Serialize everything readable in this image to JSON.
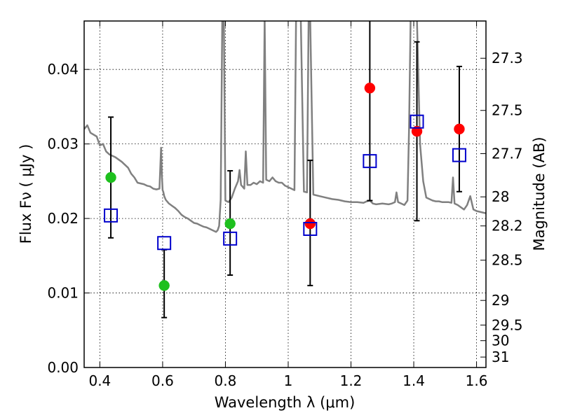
{
  "chart_data": {
    "type": "scatter",
    "xlim": [
      0.35,
      1.63
    ],
    "ylim": [
      0.0,
      0.0465
    ],
    "grid": true,
    "xlabel": "Wavelength  λ (μm)",
    "ylabel": "Flux  Fν  ( μJy )",
    "y2label": "Magnitude (AB)",
    "x_ticks": [
      {
        "value": 0.4,
        "label": "0.4"
      },
      {
        "value": 0.6,
        "label": "0.6"
      },
      {
        "value": 0.8,
        "label": "0.8"
      },
      {
        "value": 1.0,
        "label": "1"
      },
      {
        "value": 1.2,
        "label": "1.2"
      },
      {
        "value": 1.4,
        "label": "1.4"
      },
      {
        "value": 1.6,
        "label": "1.6"
      }
    ],
    "y_ticks": [
      {
        "value": 0.0,
        "label": "0.00"
      },
      {
        "value": 0.01,
        "label": "0.01"
      },
      {
        "value": 0.02,
        "label": "0.02"
      },
      {
        "value": 0.03,
        "label": "0.03"
      },
      {
        "value": 0.04,
        "label": "0.04"
      }
    ],
    "y2_ticks": [
      {
        "flux": 0.0415,
        "label": "27.3"
      },
      {
        "flux": 0.0345,
        "label": "27.5"
      },
      {
        "flux": 0.0287,
        "label": "27.7"
      },
      {
        "flux": 0.0229,
        "label": "28"
      },
      {
        "flux": 0.019,
        "label": "28.2"
      },
      {
        "flux": 0.0144,
        "label": "28.5"
      },
      {
        "flux": 0.009,
        "label": "29"
      },
      {
        "flux": 0.0057,
        "label": "29.5"
      },
      {
        "flux": 0.0036,
        "label": "30"
      },
      {
        "flux": 0.0014,
        "label": "31"
      }
    ],
    "series": [
      {
        "kind": "line",
        "color": "#808080",
        "x": [
          0.35,
          0.36,
          0.37,
          0.39,
          0.4,
          0.41,
          0.42,
          0.43,
          0.45,
          0.47,
          0.49,
          0.5,
          0.51,
          0.52,
          0.53,
          0.54,
          0.55,
          0.56,
          0.57,
          0.58,
          0.59,
          0.595,
          0.598,
          0.6,
          0.602,
          0.605,
          0.61,
          0.62,
          0.63,
          0.64,
          0.65,
          0.66,
          0.67,
          0.68,
          0.69,
          0.7,
          0.71,
          0.72,
          0.73,
          0.74,
          0.75,
          0.76,
          0.77,
          0.775,
          0.78,
          0.785,
          0.79,
          0.795,
          0.8,
          0.81,
          0.82,
          0.83,
          0.84,
          0.845,
          0.85,
          0.86,
          0.865,
          0.87,
          0.88,
          0.89,
          0.9,
          0.91,
          0.92,
          0.925,
          0.93,
          0.94,
          0.95,
          0.96,
          0.97,
          0.98,
          0.99,
          1.0,
          1.01,
          1.02,
          1.025,
          1.03,
          1.04,
          1.05,
          1.06,
          1.065,
          1.07,
          1.08,
          1.1,
          1.12,
          1.14,
          1.16,
          1.18,
          1.2,
          1.22,
          1.24,
          1.25,
          1.26,
          1.27,
          1.28,
          1.3,
          1.32,
          1.33,
          1.34,
          1.345,
          1.35,
          1.36,
          1.37,
          1.38,
          1.385,
          1.39,
          1.395,
          1.4,
          1.41,
          1.42,
          1.43,
          1.44,
          1.45,
          1.46,
          1.47,
          1.48,
          1.49,
          1.5,
          1.51,
          1.52,
          1.525,
          1.53,
          1.54,
          1.55,
          1.56,
          1.57,
          1.58,
          1.59,
          1.6,
          1.62,
          1.63
        ],
        "y": [
          0.032,
          0.0325,
          0.0315,
          0.031,
          0.0298,
          0.03,
          0.029,
          0.0286,
          0.0282,
          0.0276,
          0.0268,
          0.026,
          0.0255,
          0.0248,
          0.0247,
          0.0246,
          0.0244,
          0.0243,
          0.024,
          0.0239,
          0.024,
          0.0295,
          0.0255,
          0.0238,
          0.0236,
          0.023,
          0.0225,
          0.022,
          0.0217,
          0.0214,
          0.021,
          0.0205,
          0.0202,
          0.02,
          0.0197,
          0.0194,
          0.0193,
          0.0191,
          0.0189,
          0.0188,
          0.0186,
          0.0184,
          0.0182,
          0.0184,
          0.019,
          0.0225,
          0.047,
          0.047,
          0.0224,
          0.0222,
          0.0228,
          0.024,
          0.025,
          0.0265,
          0.0245,
          0.024,
          0.029,
          0.0245,
          0.0245,
          0.0248,
          0.0246,
          0.025,
          0.0248,
          0.047,
          0.0252,
          0.025,
          0.0255,
          0.025,
          0.0248,
          0.0248,
          0.0244,
          0.0242,
          0.024,
          0.0238,
          0.047,
          0.047,
          0.047,
          0.0236,
          0.0235,
          0.047,
          0.047,
          0.0232,
          0.023,
          0.0228,
          0.0226,
          0.0225,
          0.0223,
          0.0222,
          0.0222,
          0.0221,
          0.0223,
          0.0224,
          0.022,
          0.0219,
          0.022,
          0.0219,
          0.022,
          0.0222,
          0.0235,
          0.0222,
          0.022,
          0.0218,
          0.0224,
          0.032,
          0.047,
          0.047,
          0.047,
          0.047,
          0.03,
          0.025,
          0.0228,
          0.0226,
          0.0224,
          0.0223,
          0.0223,
          0.0222,
          0.0222,
          0.0222,
          0.0221,
          0.0255,
          0.022,
          0.0218,
          0.0215,
          0.0212,
          0.0218,
          0.023,
          0.0212,
          0.021,
          0.0208,
          0.0207
        ]
      },
      {
        "kind": "points",
        "marker": "circle",
        "color": "#1ec01e",
        "x": [
          0.435,
          0.605,
          0.815
        ],
        "y": [
          0.0255,
          0.011,
          0.0193
        ]
      },
      {
        "kind": "points",
        "marker": "circle",
        "color": "#ff0000",
        "x": [
          1.07,
          1.26,
          1.41,
          1.545
        ],
        "y": [
          0.0193,
          0.0375,
          0.0317,
          0.032
        ]
      },
      {
        "kind": "points",
        "marker": "square",
        "color": "#0000cc",
        "x": [
          0.435,
          0.605,
          0.815,
          1.07,
          1.26,
          1.41,
          1.545
        ],
        "y": [
          0.0204,
          0.0167,
          0.0173,
          0.0186,
          0.0277,
          0.033,
          0.0285
        ],
        "yerr_low": [
          0.0174,
          0.0067,
          0.0124,
          0.011,
          0.0224,
          0.0197,
          0.0236
        ],
        "yerr_high": [
          0.0336,
          0.0158,
          0.0264,
          0.0278,
          0.047,
          0.0437,
          0.0404
        ]
      }
    ]
  }
}
